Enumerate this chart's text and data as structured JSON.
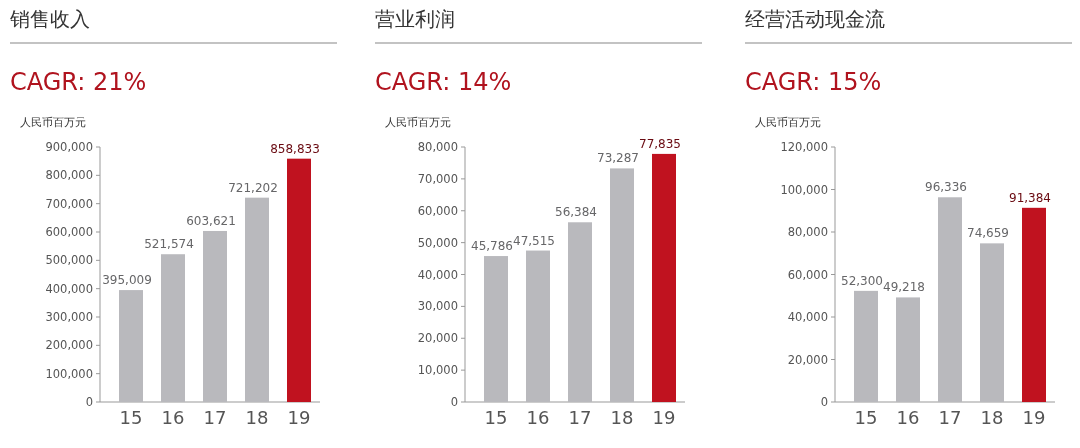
{
  "chart_data": [
    {
      "type": "bar",
      "title": "销售收入",
      "subtitle": "CAGR: 21%",
      "ylabel": "人民币百万元",
      "categories": [
        "15",
        "16",
        "17",
        "18",
        "19"
      ],
      "values": [
        395009,
        521574,
        603621,
        721202,
        858833
      ],
      "colors": [
        "#b9b9bd",
        "#b9b9bd",
        "#b9b9bd",
        "#b9b9bd",
        "#c0121f"
      ],
      "ylim": [
        0,
        900000
      ],
      "yticks": [
        {
          "value": 0,
          "label": "0"
        },
        {
          "value": 100000,
          "label": "100,000"
        },
        {
          "value": 200000,
          "label": "200,000"
        },
        {
          "value": 300000,
          "label": "300,000"
        },
        {
          "value": 400000,
          "label": "400,000"
        },
        {
          "value": 500000,
          "label": "500,000"
        },
        {
          "value": 600000,
          "label": "600,000"
        },
        {
          "value": 700000,
          "label": "700,000"
        },
        {
          "value": 800000,
          "label": "800,000"
        },
        {
          "value": 900000,
          "label": "900,000"
        }
      ],
      "value_labels": [
        "395,009",
        "521,574",
        "603,621",
        "721,202",
        "858,833"
      ]
    },
    {
      "type": "bar",
      "title": "营业利润",
      "subtitle": "CAGR: 14%",
      "ylabel": "人民币百万元",
      "categories": [
        "15",
        "16",
        "17",
        "18",
        "19"
      ],
      "values": [
        45786,
        47515,
        56384,
        73287,
        77835
      ],
      "colors": [
        "#b9b9bd",
        "#b9b9bd",
        "#b9b9bd",
        "#b9b9bd",
        "#c0121f"
      ],
      "ylim": [
        0,
        80000
      ],
      "yticks": [
        {
          "value": 0,
          "label": "0"
        },
        {
          "value": 10000,
          "label": "10,000"
        },
        {
          "value": 20000,
          "label": "20,000"
        },
        {
          "value": 30000,
          "label": "30,000"
        },
        {
          "value": 40000,
          "label": "40,000"
        },
        {
          "value": 50000,
          "label": "50,000"
        },
        {
          "value": 60000,
          "label": "60,000"
        },
        {
          "value": 70000,
          "label": "70,000"
        },
        {
          "value": 80000,
          "label": "80,000"
        }
      ],
      "value_labels": [
        "45,786",
        "47,515",
        "56,384",
        "73,287",
        "77,835"
      ]
    },
    {
      "type": "bar",
      "title": "经营活动现金流",
      "subtitle": "CAGR: 15%",
      "ylabel": "人民币百万元",
      "categories": [
        "15",
        "16",
        "17",
        "18",
        "19"
      ],
      "values": [
        52300,
        49218,
        96336,
        74659,
        91384
      ],
      "colors": [
        "#b9b9bd",
        "#b9b9bd",
        "#b9b9bd",
        "#b9b9bd",
        "#c0121f"
      ],
      "ylim": [
        0,
        120000
      ],
      "yticks": [
        {
          "value": 0,
          "label": "0"
        },
        {
          "value": 20000,
          "label": "20,000"
        },
        {
          "value": 40000,
          "label": "40,000"
        },
        {
          "value": 60000,
          "label": "60,000"
        },
        {
          "value": 80000,
          "label": "80,000"
        },
        {
          "value": 100000,
          "label": "100,000"
        },
        {
          "value": 120000,
          "label": "120,000"
        }
      ],
      "value_labels": [
        "52,300",
        "49,218",
        "96,336",
        "74,659",
        "91,384"
      ]
    }
  ]
}
